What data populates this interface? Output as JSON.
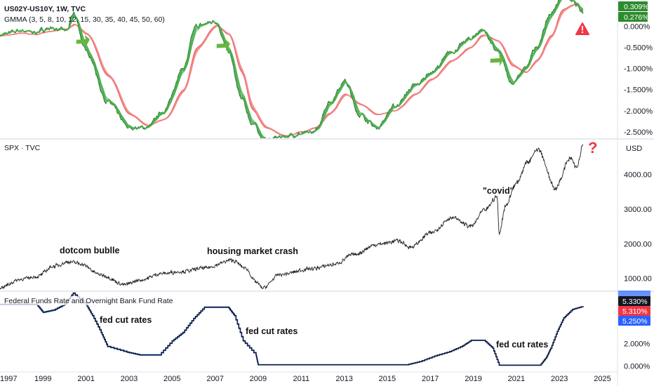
{
  "chart_data": [
    {
      "type": "line",
      "title": "US02Y-US10Y, 1W, TVC",
      "subtitle": "GMMA (3, 5, 8, 10, 12, 15, 30, 35, 40, 45, 50, 60)",
      "xlim": [
        1997.0,
        2025.7
      ],
      "ylim": [
        -2.65,
        0.62
      ],
      "yticks": [
        "0.000%",
        "-0.500%",
        "-1.000%",
        "-1.500%",
        "-2.000%",
        "-2.500%"
      ],
      "ytick_values": [
        0,
        -0.5,
        -1.0,
        -1.5,
        -2.0,
        -2.5
      ],
      "badges": [
        "0.309%",
        "0.276%"
      ],
      "x": [
        1997.0,
        1998.0,
        1998.5,
        1999.3,
        2000.1,
        2000.4,
        2001.0,
        2002.0,
        2003.0,
        2003.8,
        2004.6,
        2005.5,
        2006.1,
        2007.0,
        2007.6,
        2008.2,
        2008.7,
        2009.3,
        2010.2,
        2011.0,
        2011.6,
        2012.3,
        2013.0,
        2013.7,
        2014.5,
        2015.3,
        2016.3,
        2017.0,
        2018.0,
        2018.8,
        2019.4,
        2020.1,
        2020.8,
        2021.4,
        2021.9,
        2022.6,
        2023.1,
        2023.7,
        2024.1
      ],
      "series": [
        {
          "values": [
            -0.2,
            -0.1,
            -0.15,
            -0.05,
            -0.1,
            0.3,
            -0.6,
            -1.8,
            -2.4,
            -2.4,
            -2.0,
            -1.0,
            0.0,
            0.12,
            -0.6,
            -1.7,
            -2.3,
            -2.7,
            -2.6,
            -2.55,
            -2.5,
            -1.8,
            -1.3,
            -2.1,
            -2.4,
            -1.9,
            -1.4,
            -1.1,
            -0.6,
            -0.3,
            -0.08,
            -0.6,
            -1.35,
            -1.0,
            -0.5,
            0.3,
            0.72,
            0.55,
            0.28
          ]
        },
        {
          "values": [
            -0.22,
            -0.16,
            -0.2,
            -0.12,
            -0.06,
            0.05,
            -0.2,
            -1.2,
            -2.1,
            -2.35,
            -2.2,
            -1.5,
            -0.5,
            0.02,
            -0.2,
            -1.1,
            -2.0,
            -2.4,
            -2.6,
            -2.5,
            -2.4,
            -2.05,
            -1.6,
            -1.85,
            -2.1,
            -2.0,
            -1.6,
            -1.25,
            -0.8,
            -0.5,
            -0.2,
            -0.35,
            -0.95,
            -1.1,
            -0.8,
            -0.2,
            0.4,
            0.52,
            0.38
          ]
        }
      ]
    },
    {
      "type": "line",
      "title": "SPX · TVC",
      "xlim": [
        1997.0,
        2025.7
      ],
      "ylim": [
        650,
        5000
      ],
      "yticks": [
        "4000.00",
        "3000.00",
        "2000.00",
        "1000.00"
      ],
      "ytick_values": [
        4000,
        3000,
        2000,
        1000
      ],
      "unit_label": "USD",
      "annotations": [
        "dotcom bublle",
        "housing market crash",
        "\"covid\"",
        "?"
      ],
      "x": [
        1997.0,
        1998.0,
        1998.7,
        1999.5,
        2000.2,
        2000.7,
        2001.7,
        2002.8,
        2003.5,
        2004.5,
        2005.5,
        2006.5,
        2007.8,
        2008.4,
        2008.9,
        2009.2,
        2010.0,
        2011.5,
        2012.5,
        2013.5,
        2014.5,
        2015.5,
        2016.1,
        2017.0,
        2018.0,
        2018.9,
        2019.5,
        2020.1,
        2020.2,
        2020.5,
        2021.0,
        2021.5,
        2022.0,
        2022.8,
        2023.5,
        2023.8,
        2024.1
      ],
      "values": [
        740,
        980,
        1050,
        1350,
        1480,
        1430,
        1100,
        820,
        950,
        1140,
        1200,
        1300,
        1520,
        1300,
        900,
        720,
        1110,
        1280,
        1400,
        1700,
        1980,
        2080,
        1900,
        2300,
        2750,
        2500,
        2950,
        3350,
        2300,
        3100,
        3750,
        4350,
        4750,
        3600,
        4450,
        4200,
        4850
      ]
    },
    {
      "type": "line",
      "title": "Federal Funds Rate and Overnight Bank Fund Rate",
      "xlim": [
        1997.0,
        2025.7
      ],
      "ylim": [
        -0.4,
        6.6
      ],
      "xticks": [
        "1997",
        "1999",
        "2001",
        "2003",
        "2005",
        "2007",
        "2009",
        "2011",
        "2013",
        "2015",
        "2017",
        "2019",
        "2021",
        "2023",
        "2025"
      ],
      "xtick_values": [
        1997,
        1999,
        2001,
        2003,
        2005,
        2007,
        2009,
        2011,
        2013,
        2015,
        2017,
        2019,
        2021,
        2023,
        2025
      ],
      "yticks": [
        "2.000%",
        "0.000%"
      ],
      "ytick_values": [
        2,
        0
      ],
      "badges": [
        "5.330%",
        "5.310%",
        "5.250%"
      ],
      "annotations": [
        "fed cut rates",
        "fed cut rates",
        "fed cut rates"
      ],
      "x": [
        1997.0,
        1998.7,
        1999.0,
        1999.5,
        2000.0,
        2000.4,
        2001.0,
        2001.3,
        2001.7,
        2002.0,
        2002.9,
        2003.5,
        2004.4,
        2005.0,
        2005.5,
        2006.0,
        2006.5,
        2007.6,
        2007.9,
        2008.3,
        2008.9,
        2009.0,
        2015.9,
        2016.5,
        2017.2,
        2017.9,
        2018.5,
        2018.9,
        2019.5,
        2019.9,
        2020.2,
        2022.1,
        2022.4,
        2022.6,
        2022.9,
        2023.2,
        2023.6,
        2024.1
      ],
      "series": [
        {
          "values": [
            5.5,
            5.5,
            4.8,
            5.0,
            5.5,
            6.5,
            5.5,
            4.5,
            3.0,
            1.75,
            1.25,
            1.0,
            1.0,
            2.25,
            3.0,
            4.25,
            5.25,
            5.25,
            4.5,
            2.25,
            1.0,
            0.12,
            0.12,
            0.4,
            0.9,
            1.3,
            1.8,
            2.3,
            2.3,
            1.6,
            0.08,
            0.08,
            0.8,
            1.6,
            3.1,
            4.3,
            5.05,
            5.33
          ]
        },
        {
          "values": [
            5.45,
            5.45,
            4.75,
            4.95,
            5.45,
            6.45,
            5.45,
            4.45,
            2.95,
            1.7,
            1.2,
            0.95,
            0.95,
            2.2,
            2.95,
            4.2,
            5.2,
            5.2,
            4.45,
            2.2,
            0.95,
            0.1,
            0.1,
            0.37,
            0.87,
            1.27,
            1.77,
            2.27,
            2.27,
            1.57,
            0.06,
            0.06,
            0.77,
            1.57,
            3.07,
            4.27,
            5.02,
            5.31
          ]
        }
      ]
    }
  ]
}
